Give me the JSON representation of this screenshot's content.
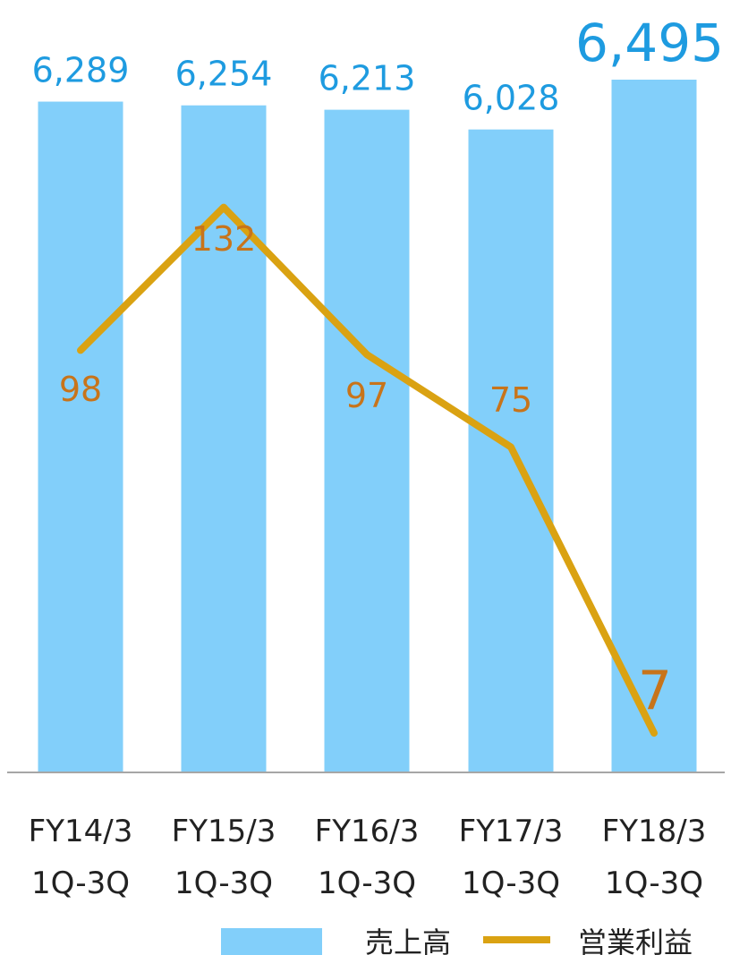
{
  "chart_data": {
    "type": "bar",
    "categories": [
      [
        "FY14/3",
        "1Q-3Q"
      ],
      [
        "FY15/3",
        "1Q-3Q"
      ],
      [
        "FY16/3",
        "1Q-3Q"
      ],
      [
        "FY17/3",
        "1Q-3Q"
      ],
      [
        "FY18/3",
        "1Q-3Q"
      ]
    ],
    "bar_series": {
      "name": "売上高",
      "values": [
        6289,
        6254,
        6213,
        6028,
        6495
      ],
      "labels": [
        "6,289",
        "6,254",
        "6,213",
        "6,028",
        "6,495"
      ],
      "color": "#82cffa",
      "label_color": "#1e9be0"
    },
    "line_series": {
      "name": "営業利益",
      "values": [
        98,
        132,
        97,
        75,
        7
      ],
      "labels": [
        "98",
        "132",
        "97",
        "75",
        "7"
      ],
      "color": "#daa212",
      "label_color": "#c8741a"
    },
    "bar_ylim": [
      0,
      7000
    ],
    "line_ylim": [
      0,
      140
    ],
    "grid": false,
    "legend_position": "bottom-right",
    "title": "",
    "xlabel": "",
    "ylabel": ""
  },
  "legend": {
    "bar_label": "売上高",
    "line_label": "営業利益"
  }
}
